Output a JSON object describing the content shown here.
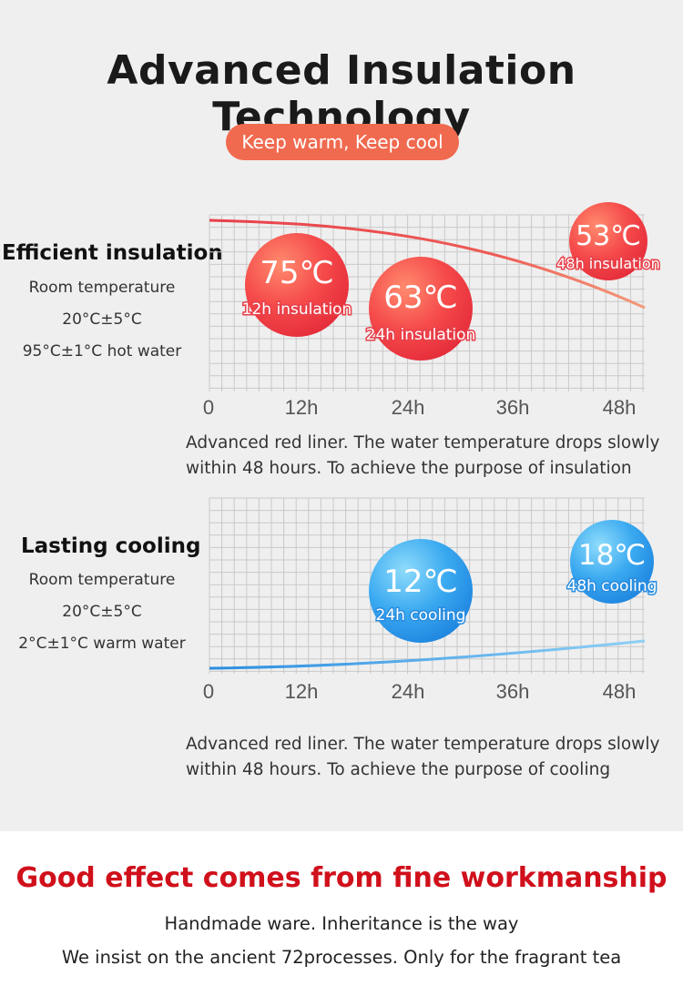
{
  "header": {
    "title": "Advanced Insulation Technology",
    "pill": "Keep warm, Keep cool"
  },
  "insulation": {
    "heading": "Efficient insulation",
    "info": [
      "Room temperature",
      "20°C±5°C",
      "95°C±1°C hot water"
    ],
    "desc1": "Advanced red liner. The water temperature drops slowly",
    "desc2": "within 48 hours. To achieve the purpose of insulation"
  },
  "cooling": {
    "heading": "Lasting cooling",
    "info": [
      "Room temperature",
      "20°C±5°C",
      "2°C±1°C warm water"
    ],
    "desc1": "Advanced red liner. The water temperature drops slowly",
    "desc2": "within 48 hours. To achieve the purpose of cooling"
  },
  "footer": {
    "title": "Good effect comes from fine workmanship",
    "line1": "Handmade ware. Inheritance is the way",
    "line2": "We insist on the ancient 72processes. Only for the fragrant tea"
  },
  "colors": {
    "pill": "#f06a4f",
    "warm": "#e8404a",
    "warm_light": "#f39a7a",
    "cool": "#2a8de0",
    "cool_light": "#8fd0f5",
    "footer_title": "#d0101b"
  },
  "chart_data": [
    {
      "type": "line",
      "x_ticks": [
        "0",
        "12h",
        "24h",
        "36h",
        "48h"
      ],
      "x": [
        0,
        12,
        24,
        36,
        48
      ],
      "series": [
        {
          "values": [
            95,
            75,
            63,
            null,
            53
          ]
        }
      ],
      "ylim": [
        40,
        100
      ],
      "annotations": [
        {
          "x": 12,
          "value": "75℃",
          "label": "12h insulation"
        },
        {
          "x": 24,
          "value": "63℃",
          "label": "24h insulation"
        },
        {
          "x": 48,
          "value": "53℃",
          "label": "48h insulation"
        }
      ],
      "grid": true
    },
    {
      "type": "line",
      "x_ticks": [
        "0",
        "12h",
        "24h",
        "36h",
        "48h"
      ],
      "x": [
        0,
        24,
        48
      ],
      "series": [
        {
          "values": [
            2,
            12,
            18
          ]
        }
      ],
      "ylim": [
        0,
        100
      ],
      "annotations": [
        {
          "x": 24,
          "value": "12℃",
          "label": "24h cooling"
        },
        {
          "x": 48,
          "value": "18℃",
          "label": "48h cooling"
        }
      ],
      "grid": true
    }
  ]
}
